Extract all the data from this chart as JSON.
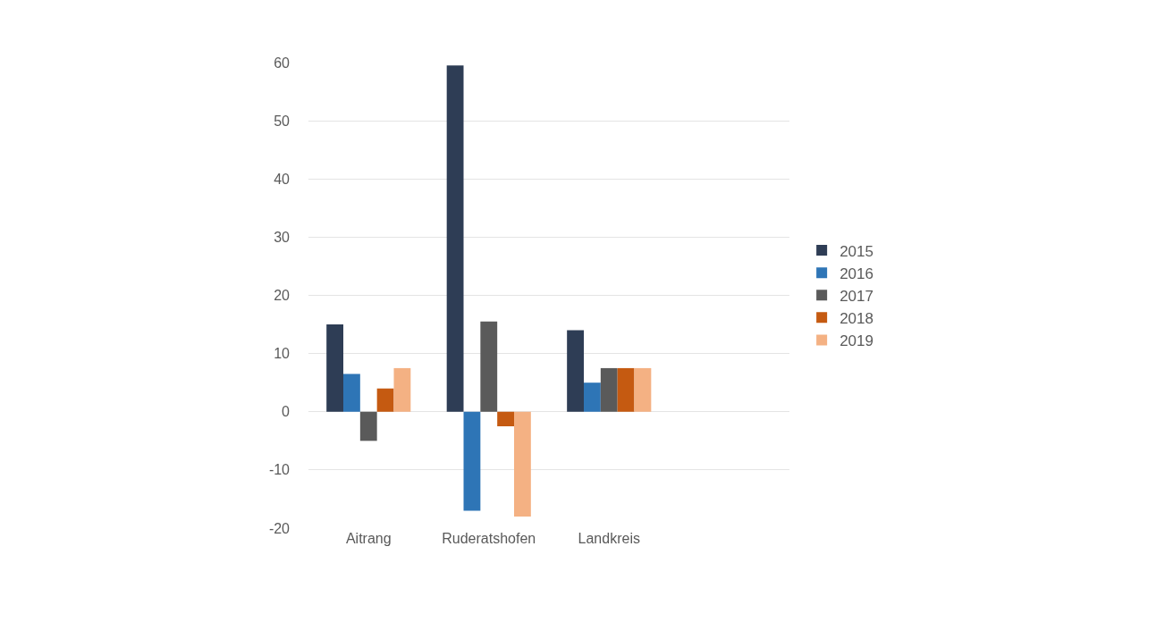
{
  "chart_data": {
    "type": "bar",
    "categories": [
      "Aitrang",
      "Ruderatshofen",
      "Landkreis",
      null
    ],
    "series": [
      {
        "name": "2015",
        "color": "#2e3d55",
        "values": [
          15,
          59.5,
          14,
          null
        ]
      },
      {
        "name": "2016",
        "color": "#2e75b6",
        "values": [
          6.5,
          -17,
          5,
          null
        ]
      },
      {
        "name": "2017",
        "color": "#5a5a5a",
        "values": [
          -5,
          15.5,
          7.5,
          null
        ]
      },
      {
        "name": "2018",
        "color": "#c55a11",
        "values": [
          4,
          -2.5,
          7.5,
          null
        ]
      },
      {
        "name": "2019",
        "color": "#f4b183",
        "values": [
          7.5,
          -18,
          7.5,
          null
        ]
      }
    ],
    "ylim": [
      -20,
      60
    ],
    "yticks": [
      -20,
      -10,
      0,
      10,
      20,
      30,
      40,
      50,
      60
    ],
    "grid": "y",
    "legend": "right"
  }
}
